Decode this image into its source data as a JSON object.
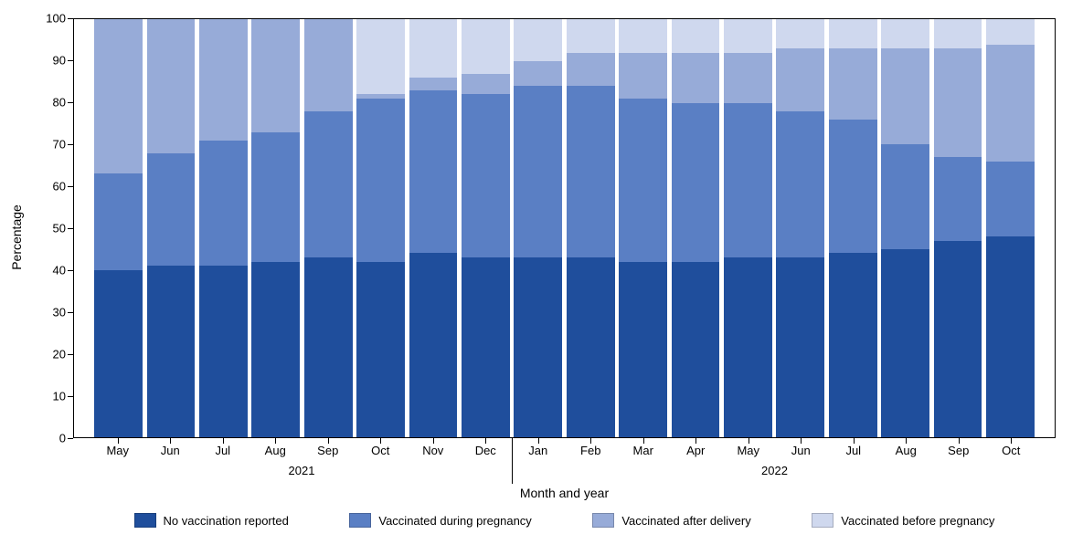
{
  "chart": {
    "type": "stacked-bar",
    "y_title": "Percentage",
    "x_title": "Month and year",
    "ylim": [
      0,
      100
    ],
    "ytick_step": 10,
    "yticks": [
      0,
      10,
      20,
      30,
      40,
      50,
      60,
      70,
      80,
      90,
      100
    ],
    "background_color": "#ffffff",
    "axis_color": "#000000",
    "font_family": "Arial",
    "label_fontsize": 13,
    "title_fontsize": 14,
    "bar_width_ratio": 0.92,
    "year_divider_after_index": 7,
    "year_labels": [
      {
        "label": "2021",
        "center_index": 3.5
      },
      {
        "label": "2022",
        "center_index": 12.5
      }
    ],
    "series": [
      {
        "key": "no_vax",
        "label": "No vaccination reported",
        "color": "#1f4e9c"
      },
      {
        "key": "during",
        "label": "Vaccinated during pregnancy",
        "color": "#5a7fc4"
      },
      {
        "key": "after",
        "label": "Vaccinated after delivery",
        "color": "#97abd8"
      },
      {
        "key": "before",
        "label": "Vaccinated before pregnancy",
        "color": "#cfd8ee"
      }
    ],
    "categories": [
      "May",
      "Jun",
      "Jul",
      "Aug",
      "Sep",
      "Oct",
      "Nov",
      "Dec",
      "Jan",
      "Feb",
      "Mar",
      "Apr",
      "May",
      "Jun",
      "Jul",
      "Aug",
      "Sep",
      "Oct"
    ],
    "stacks": [
      {
        "no_vax": 40,
        "during": 23,
        "after": 37,
        "before": 0
      },
      {
        "no_vax": 41,
        "during": 27,
        "after": 32,
        "before": 0
      },
      {
        "no_vax": 41,
        "during": 30,
        "after": 29,
        "before": 0
      },
      {
        "no_vax": 42,
        "during": 31,
        "after": 27,
        "before": 0
      },
      {
        "no_vax": 43,
        "during": 35,
        "after": 22,
        "before": 0
      },
      {
        "no_vax": 42,
        "during": 39,
        "after": 1,
        "before": 18
      },
      {
        "no_vax": 44,
        "during": 39,
        "after": 3,
        "before": 14
      },
      {
        "no_vax": 43,
        "during": 39,
        "after": 5,
        "before": 13
      },
      {
        "no_vax": 43,
        "during": 41,
        "after": 6,
        "before": 10
      },
      {
        "no_vax": 43,
        "during": 41,
        "after": 8,
        "before": 8
      },
      {
        "no_vax": 42,
        "during": 39,
        "after": 11,
        "before": 8
      },
      {
        "no_vax": 42,
        "during": 38,
        "after": 12,
        "before": 8
      },
      {
        "no_vax": 43,
        "during": 37,
        "after": 12,
        "before": 8
      },
      {
        "no_vax": 43,
        "during": 35,
        "after": 15,
        "before": 7
      },
      {
        "no_vax": 44,
        "during": 32,
        "after": 17,
        "before": 7
      },
      {
        "no_vax": 45,
        "during": 25,
        "after": 23,
        "before": 7
      },
      {
        "no_vax": 47,
        "during": 20,
        "after": 26,
        "before": 7
      },
      {
        "no_vax": 48,
        "during": 18,
        "after": 28,
        "before": 6
      }
    ]
  }
}
